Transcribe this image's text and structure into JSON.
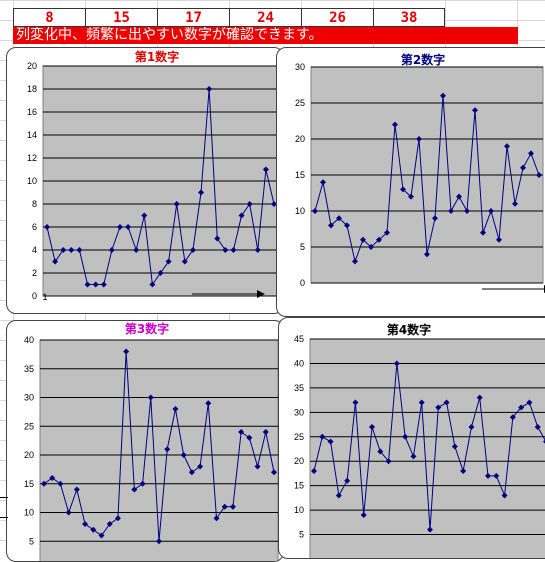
{
  "top_numbers": [
    "8",
    "15",
    "17",
    "24",
    "26",
    "38"
  ],
  "banner_text": "列変化中、頻繁に出やすい数字が確認できます。",
  "colors": {
    "banner_bg": "#ee0000",
    "plot_bg": "#c0c0c0",
    "series": "#000080"
  },
  "chart_data": [
    {
      "type": "line",
      "title": "第1数字",
      "title_color": "#e00000",
      "ylim": [
        0,
        20
      ],
      "yticks": [
        0,
        2,
        4,
        6,
        8,
        10,
        12,
        14,
        16,
        18,
        20
      ],
      "xtick_label": "1",
      "grid": true,
      "values": [
        6,
        3,
        4,
        4,
        4,
        1,
        1,
        1,
        4,
        6,
        6,
        4,
        7,
        1,
        2,
        3,
        8,
        3,
        4,
        9,
        18,
        5,
        4,
        4,
        7,
        8,
        4,
        11,
        8
      ]
    },
    {
      "type": "line",
      "title": "第2数字",
      "title_color": "#000080",
      "ylim": [
        0,
        30
      ],
      "yticks": [
        0,
        5,
        10,
        15,
        20,
        25,
        30
      ],
      "grid": true,
      "values": [
        10,
        14,
        8,
        9,
        8,
        3,
        6,
        5,
        6,
        7,
        22,
        13,
        12,
        20,
        4,
        9,
        26,
        10,
        12,
        10,
        24,
        7,
        10,
        6,
        19,
        11,
        16,
        18,
        15
      ]
    },
    {
      "type": "line",
      "title": "第3数字",
      "title_color": "#cc00cc",
      "ylim": [
        0,
        40
      ],
      "yticks": [
        5,
        10,
        15,
        20,
        25,
        30,
        35,
        40
      ],
      "grid": true,
      "values": [
        15,
        16,
        15,
        10,
        14,
        8,
        7,
        6,
        8,
        9,
        38,
        14,
        15,
        30,
        5,
        21,
        28,
        20,
        17,
        18,
        29,
        9,
        11,
        11,
        24,
        23,
        18,
        24,
        17
      ]
    },
    {
      "type": "line",
      "title": "第4数字",
      "title_color": "#000000",
      "ylim": [
        0,
        45
      ],
      "yticks": [
        5,
        10,
        15,
        20,
        25,
        30,
        35,
        40,
        45
      ],
      "grid": true,
      "values": [
        18,
        25,
        24,
        13,
        16,
        32,
        9,
        27,
        22,
        20,
        40,
        25,
        21,
        32,
        6,
        31,
        32,
        23,
        18,
        27,
        33,
        17,
        17,
        13,
        29,
        31,
        32,
        27,
        24
      ]
    }
  ]
}
